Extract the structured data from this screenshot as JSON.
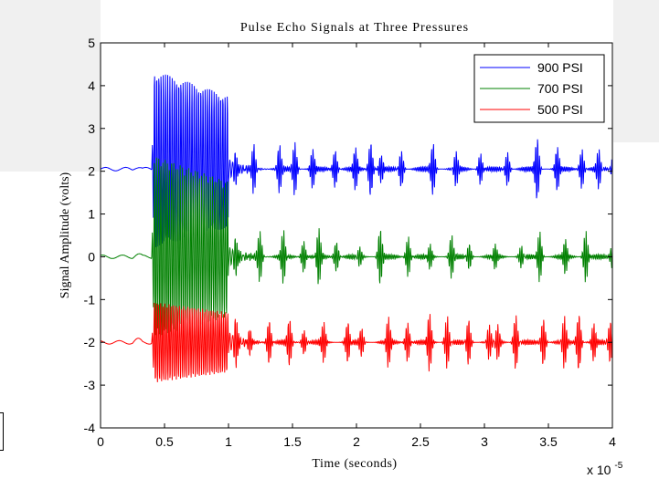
{
  "chart_data": {
    "type": "line",
    "title": "Pulse Echo Signals at Three Pressures",
    "xlabel": "Time (seconds)",
    "ylabel": "Signal Amplitude (volts)",
    "x_multiplier": "x 10",
    "x_multiplier_exp": "-5",
    "xlim": [
      0,
      4
    ],
    "ylim": [
      -4,
      5
    ],
    "x_ticks": [
      "0",
      "0.5",
      "1",
      "1.5",
      "2",
      "2.5",
      "3",
      "3.5",
      "4"
    ],
    "y_ticks": [
      "-4",
      "-3",
      "-2",
      "-1",
      "0",
      "1",
      "2",
      "3",
      "4",
      "5"
    ],
    "legend_position": "top-right",
    "grid": false,
    "series": [
      {
        "name": "900 PSI",
        "color": "#0000ff",
        "baseline": 2.05,
        "max": 4.5,
        "min": 0.1,
        "clip_low": null,
        "clip_high": null,
        "seed": 11
      },
      {
        "name": "700 PSI",
        "color": "#008000",
        "baseline": 0.0,
        "max": 2.5,
        "min": -2.0,
        "clip_low": null,
        "clip_high": null,
        "seed": 23
      },
      {
        "name": "500 PSI",
        "color": "#ff0000",
        "baseline": -2.0,
        "max": -1.0,
        "min": -3.0,
        "clip_low": -3.0,
        "clip_high": -1.0,
        "seed": 37
      }
    ],
    "signal_onset": 0.4,
    "main_burst_end": 1.0
  }
}
